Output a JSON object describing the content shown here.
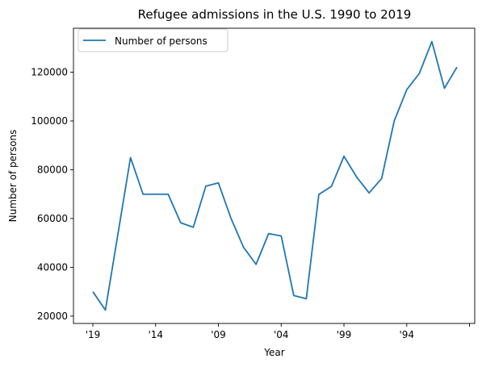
{
  "chart_data": {
    "type": "line",
    "title": "Refugee admissions in the U.S. 1990 to 2019",
    "xlabel": "Year",
    "ylabel": "Number of persons",
    "x_tick_labels": [
      "'19",
      "'14",
      "'09",
      "'04",
      "'99",
      "'94",
      ""
    ],
    "ylim": [
      17000,
      138000
    ],
    "y_ticks": [
      20000,
      40000,
      60000,
      80000,
      100000,
      120000
    ],
    "y_tick_labels": [
      "20000",
      "40000",
      "60000",
      "80000",
      "100000",
      "120000"
    ],
    "grid": false,
    "legend_position": "top-left",
    "series": [
      {
        "name": "Number of persons",
        "color": "#1f77b4",
        "values": [
          30000,
          22491,
          53716,
          84988,
          69933,
          69975,
          69926,
          58238,
          56424,
          73293,
          74602,
          60108,
          48218,
          41223,
          53813,
          52873,
          28455,
          27131,
          69886,
          73147,
          85525,
          77080,
          70488,
          76403,
          99974,
          112811,
          119448,
          132531,
          113389,
          122066
        ]
      }
    ]
  }
}
